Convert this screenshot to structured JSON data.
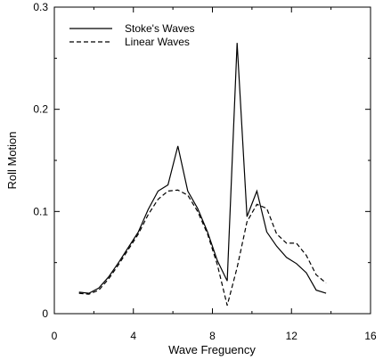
{
  "chart_data": {
    "type": "line",
    "xlabel": "Wave Freguency",
    "ylabel": "Roll Motion",
    "xlim": [
      0,
      16
    ],
    "ylim": [
      0,
      0.3
    ],
    "xticks": [
      0,
      4,
      8,
      12,
      16
    ],
    "yticks": [
      0,
      0.1,
      0.2,
      0.3
    ],
    "xtick_labels": [
      "0",
      "4",
      "8",
      "12",
      "16"
    ],
    "ytick_labels": [
      "0",
      "0.1",
      "0.2",
      "0.3"
    ],
    "grid": false,
    "legend_position": "top-left",
    "series": [
      {
        "name": "Stoke's Waves",
        "style": "solid",
        "x": [
          1.25,
          1.75,
          2.25,
          2.75,
          3.25,
          3.75,
          4.25,
          4.75,
          5.25,
          5.75,
          6.25,
          6.75,
          7.25,
          7.75,
          8.25,
          8.75,
          9.25,
          9.75,
          10.25,
          10.75,
          11.25,
          11.75,
          12.25,
          12.75,
          13.25,
          13.75
        ],
        "y": [
          0.021,
          0.02,
          0.025,
          0.036,
          0.05,
          0.065,
          0.08,
          0.102,
          0.12,
          0.126,
          0.164,
          0.12,
          0.103,
          0.08,
          0.052,
          0.032,
          0.265,
          0.095,
          0.12,
          0.08,
          0.066,
          0.055,
          0.049,
          0.04,
          0.023,
          0.02
        ]
      },
      {
        "name": "Linear Waves",
        "style": "dashed",
        "x": [
          1.25,
          1.75,
          2.25,
          2.75,
          3.25,
          3.75,
          4.25,
          4.75,
          5.25,
          5.75,
          6.25,
          6.75,
          7.25,
          7.75,
          8.25,
          8.75,
          9.25,
          9.75,
          10.25,
          10.75,
          11.25,
          11.75,
          12.25,
          12.75,
          13.25,
          13.75
        ],
        "y": [
          0.02,
          0.019,
          0.023,
          0.034,
          0.048,
          0.063,
          0.078,
          0.097,
          0.112,
          0.12,
          0.121,
          0.116,
          0.1,
          0.078,
          0.048,
          0.008,
          0.045,
          0.09,
          0.107,
          0.103,
          0.078,
          0.069,
          0.069,
          0.057,
          0.038,
          0.03
        ]
      }
    ]
  }
}
